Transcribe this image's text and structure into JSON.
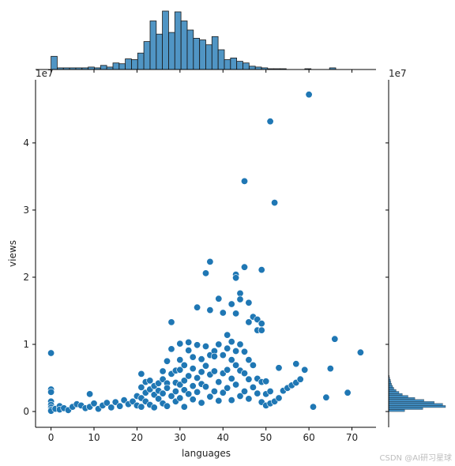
{
  "chart_data": {
    "type": "scatter",
    "subtype": "jointplot",
    "xlabel": "languages",
    "ylabel": "views",
    "xlim": [
      -3.6,
      75.6
    ],
    "ylim": [
      -2350000,
      49400000
    ],
    "y_scale_label": "1e7",
    "x_ticks": [
      0,
      10,
      20,
      30,
      40,
      50,
      60,
      70
    ],
    "x_tick_labels": [
      "0",
      "10",
      "20",
      "30",
      "40",
      "50",
      "60",
      "70"
    ],
    "y_ticks": [
      0,
      10000000,
      20000000,
      30000000,
      40000000
    ],
    "y_tick_labels": [
      "0",
      "1",
      "2",
      "3",
      "4"
    ],
    "point_color": "#1f77b4",
    "hist_color": "#1f77b4",
    "points": [
      [
        0,
        8700000
      ],
      [
        0,
        3300000
      ],
      [
        0,
        2900000
      ],
      [
        0,
        1500000
      ],
      [
        0,
        1000000
      ],
      [
        0,
        600000
      ],
      [
        0,
        300000
      ],
      [
        0,
        100000
      ],
      [
        1,
        400000
      ],
      [
        2,
        800000
      ],
      [
        2,
        300000
      ],
      [
        3,
        500000
      ],
      [
        4,
        200000
      ],
      [
        5,
        700000
      ],
      [
        6,
        1100000
      ],
      [
        7,
        900000
      ],
      [
        8,
        500000
      ],
      [
        9,
        2600000
      ],
      [
        9,
        700000
      ],
      [
        10,
        1200000
      ],
      [
        11,
        400000
      ],
      [
        12,
        900000
      ],
      [
        13,
        1300000
      ],
      [
        14,
        600000
      ],
      [
        15,
        1400000
      ],
      [
        16,
        800000
      ],
      [
        17,
        1700000
      ],
      [
        18,
        1100000
      ],
      [
        19,
        1500000
      ],
      [
        20,
        900000
      ],
      [
        20,
        2300000
      ],
      [
        21,
        5600000
      ],
      [
        21,
        3600000
      ],
      [
        21,
        2000000
      ],
      [
        21,
        700000
      ],
      [
        22,
        4400000
      ],
      [
        22,
        2800000
      ],
      [
        22,
        1500000
      ],
      [
        23,
        4600000
      ],
      [
        23,
        3300000
      ],
      [
        23,
        1000000
      ],
      [
        24,
        3800000
      ],
      [
        24,
        2500000
      ],
      [
        24,
        600000
      ],
      [
        25,
        4200000
      ],
      [
        25,
        1900000
      ],
      [
        25,
        3100000
      ],
      [
        26,
        6000000
      ],
      [
        26,
        4800000
      ],
      [
        26,
        2700000
      ],
      [
        26,
        1200000
      ],
      [
        27,
        7500000
      ],
      [
        27,
        4200000
      ],
      [
        27,
        3500000
      ],
      [
        27,
        800000
      ],
      [
        28,
        9300000
      ],
      [
        28,
        13300000
      ],
      [
        28,
        5600000
      ],
      [
        28,
        2300000
      ],
      [
        29,
        4300000
      ],
      [
        29,
        3000000
      ],
      [
        29,
        1500000
      ],
      [
        29,
        6100000
      ],
      [
        30,
        10100000
      ],
      [
        30,
        7700000
      ],
      [
        30,
        6200000
      ],
      [
        30,
        4000000
      ],
      [
        30,
        2000000
      ],
      [
        31,
        6900000
      ],
      [
        31,
        4600000
      ],
      [
        31,
        3200000
      ],
      [
        31,
        700000
      ],
      [
        32,
        10300000
      ],
      [
        32,
        9100000
      ],
      [
        32,
        5300000
      ],
      [
        32,
        2600000
      ],
      [
        33,
        8100000
      ],
      [
        33,
        6400000
      ],
      [
        33,
        3800000
      ],
      [
        33,
        1800000
      ],
      [
        34,
        15500000
      ],
      [
        34,
        9900000
      ],
      [
        34,
        5000000
      ],
      [
        34,
        2900000
      ],
      [
        35,
        7800000
      ],
      [
        35,
        5900000
      ],
      [
        35,
        4100000
      ],
      [
        35,
        1300000
      ],
      [
        36,
        20600000
      ],
      [
        36,
        9700000
      ],
      [
        36,
        6800000
      ],
      [
        36,
        3700000
      ],
      [
        37,
        22300000
      ],
      [
        37,
        15100000
      ],
      [
        37,
        8400000
      ],
      [
        37,
        5500000
      ],
      [
        37,
        2200000
      ],
      [
        38,
        9000000
      ],
      [
        38,
        8200000
      ],
      [
        38,
        6000000
      ],
      [
        38,
        3000000
      ],
      [
        39,
        16800000
      ],
      [
        39,
        10000000
      ],
      [
        39,
        4400000
      ],
      [
        39,
        1600000
      ],
      [
        40,
        14700000
      ],
      [
        40,
        8400000
      ],
      [
        40,
        5700000
      ],
      [
        40,
        2800000
      ],
      [
        41,
        11400000
      ],
      [
        41,
        9400000
      ],
      [
        41,
        6200000
      ],
      [
        41,
        3500000
      ],
      [
        42,
        16000000
      ],
      [
        42,
        10400000
      ],
      [
        42,
        7700000
      ],
      [
        42,
        4900000
      ],
      [
        42,
        1700000
      ],
      [
        43,
        20400000
      ],
      [
        43,
        19900000
      ],
      [
        43,
        14600000
      ],
      [
        43,
        9000000
      ],
      [
        43,
        6900000
      ],
      [
        43,
        4000000
      ],
      [
        44,
        17600000
      ],
      [
        44,
        16700000
      ],
      [
        44,
        10000000
      ],
      [
        44,
        6100000
      ],
      [
        44,
        2300000
      ],
      [
        45,
        34300000
      ],
      [
        45,
        21500000
      ],
      [
        45,
        8900000
      ],
      [
        45,
        5700000
      ],
      [
        45,
        3000000
      ],
      [
        46,
        16200000
      ],
      [
        46,
        13300000
      ],
      [
        46,
        7700000
      ],
      [
        46,
        4800000
      ],
      [
        46,
        1900000
      ],
      [
        47,
        14100000
      ],
      [
        47,
        6900000
      ],
      [
        47,
        3600000
      ],
      [
        48,
        12100000
      ],
      [
        48,
        13700000
      ],
      [
        48,
        4900000
      ],
      [
        48,
        2700000
      ],
      [
        49,
        21100000
      ],
      [
        49,
        13100000
      ],
      [
        49,
        12100000
      ],
      [
        49,
        4400000
      ],
      [
        49,
        1400000
      ],
      [
        50,
        4500000
      ],
      [
        50,
        2600000
      ],
      [
        50,
        900000
      ],
      [
        51,
        43200000
      ],
      [
        51,
        3000000
      ],
      [
        51,
        1200000
      ],
      [
        52,
        31100000
      ],
      [
        52,
        1500000
      ],
      [
        53,
        6500000
      ],
      [
        53,
        2000000
      ],
      [
        54,
        3100000
      ],
      [
        55,
        3500000
      ],
      [
        56,
        3900000
      ],
      [
        57,
        7100000
      ],
      [
        57,
        4300000
      ],
      [
        58,
        4800000
      ],
      [
        59,
        6200000
      ],
      [
        60,
        47200000
      ],
      [
        61,
        700000
      ],
      [
        64,
        2100000
      ],
      [
        65,
        6400000
      ],
      [
        66,
        10800000
      ],
      [
        69,
        2800000
      ],
      [
        72,
        8800000
      ]
    ],
    "x_hist": [
      {
        "x0": 0,
        "x1": 1.44,
        "count": 16
      },
      {
        "x0": 1.44,
        "x1": 2.88,
        "count": 2
      },
      {
        "x0": 2.88,
        "x1": 4.32,
        "count": 2
      },
      {
        "x0": 4.32,
        "x1": 5.76,
        "count": 2
      },
      {
        "x0": 5.76,
        "x1": 7.2,
        "count": 2
      },
      {
        "x0": 7.2,
        "x1": 8.64,
        "count": 2
      },
      {
        "x0": 8.64,
        "x1": 10.08,
        "count": 3
      },
      {
        "x0": 10.08,
        "x1": 11.52,
        "count": 2
      },
      {
        "x0": 11.52,
        "x1": 12.96,
        "count": 5
      },
      {
        "x0": 12.96,
        "x1": 14.4,
        "count": 3
      },
      {
        "x0": 14.4,
        "x1": 15.84,
        "count": 8
      },
      {
        "x0": 15.84,
        "x1": 17.28,
        "count": 7
      },
      {
        "x0": 17.28,
        "x1": 18.72,
        "count": 13
      },
      {
        "x0": 18.72,
        "x1": 20.16,
        "count": 12
      },
      {
        "x0": 20.16,
        "x1": 21.6,
        "count": 20
      },
      {
        "x0": 21.6,
        "x1": 23.04,
        "count": 34
      },
      {
        "x0": 23.04,
        "x1": 24.48,
        "count": 59
      },
      {
        "x0": 24.48,
        "x1": 25.92,
        "count": 43
      },
      {
        "x0": 25.92,
        "x1": 27.36,
        "count": 71
      },
      {
        "x0": 27.36,
        "x1": 28.8,
        "count": 45
      },
      {
        "x0": 28.8,
        "x1": 30.24,
        "count": 70
      },
      {
        "x0": 30.24,
        "x1": 31.68,
        "count": 59
      },
      {
        "x0": 31.68,
        "x1": 33.12,
        "count": 48
      },
      {
        "x0": 33.12,
        "x1": 34.56,
        "count": 38
      },
      {
        "x0": 34.56,
        "x1": 36.0,
        "count": 36
      },
      {
        "x0": 36.0,
        "x1": 37.44,
        "count": 30
      },
      {
        "x0": 37.44,
        "x1": 38.88,
        "count": 40
      },
      {
        "x0": 38.88,
        "x1": 40.32,
        "count": 24
      },
      {
        "x0": 40.32,
        "x1": 41.76,
        "count": 12
      },
      {
        "x0": 41.76,
        "x1": 43.2,
        "count": 14
      },
      {
        "x0": 43.2,
        "x1": 44.64,
        "count": 10
      },
      {
        "x0": 44.64,
        "x1": 46.08,
        "count": 8
      },
      {
        "x0": 46.08,
        "x1": 47.52,
        "count": 4
      },
      {
        "x0": 47.52,
        "x1": 48.96,
        "count": 3
      },
      {
        "x0": 48.96,
        "x1": 50.4,
        "count": 2
      },
      {
        "x0": 50.4,
        "x1": 51.84,
        "count": 1
      },
      {
        "x0": 51.84,
        "x1": 53.28,
        "count": 1
      },
      {
        "x0": 53.28,
        "x1": 54.72,
        "count": 1
      },
      {
        "x0": 59.04,
        "x1": 60.48,
        "count": 1
      },
      {
        "x0": 64.8,
        "x1": 66.24,
        "count": 2
      }
    ],
    "y_hist_range": [
      0,
      6000000
    ],
    "y_hist": [
      {
        "y0": 0,
        "y1": 300000,
        "count": 28
      },
      {
        "y0": 300000,
        "y1": 600000,
        "count": 60
      },
      {
        "y0": 600000,
        "y1": 900000,
        "count": 100
      },
      {
        "y0": 900000,
        "y1": 1200000,
        "count": 95
      },
      {
        "y0": 1200000,
        "y1": 1500000,
        "count": 80
      },
      {
        "y0": 1500000,
        "y1": 1800000,
        "count": 62
      },
      {
        "y0": 1800000,
        "y1": 2100000,
        "count": 46
      },
      {
        "y0": 2100000,
        "y1": 2400000,
        "count": 34
      },
      {
        "y0": 2400000,
        "y1": 2700000,
        "count": 24
      },
      {
        "y0": 2700000,
        "y1": 3000000,
        "count": 18
      },
      {
        "y0": 3000000,
        "y1": 3300000,
        "count": 13
      },
      {
        "y0": 3300000,
        "y1": 3600000,
        "count": 9
      },
      {
        "y0": 3600000,
        "y1": 3900000,
        "count": 7
      },
      {
        "y0": 3900000,
        "y1": 4200000,
        "count": 5
      },
      {
        "y0": 4200000,
        "y1": 4500000,
        "count": 4
      },
      {
        "y0": 4500000,
        "y1": 4800000,
        "count": 3
      },
      {
        "y0": 4800000,
        "y1": 5100000,
        "count": 2
      },
      {
        "y0": 5100000,
        "y1": 5400000,
        "count": 1
      }
    ]
  },
  "watermark": "CSDN @AI研习星球"
}
